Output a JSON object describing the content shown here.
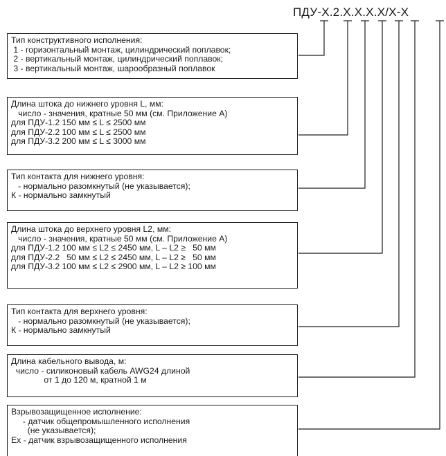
{
  "code": {
    "parts": [
      "ПДУ-",
      "Х",
      ".",
      "2",
      ".",
      "Х",
      ".",
      "Х",
      ".",
      "Х",
      ".",
      "Х",
      "/",
      "Х",
      "-",
      "Х"
    ]
  },
  "boxes": [
    {
      "lines": [
        "Тип конструктивного исполнения:",
        " 1 - горизонтальный монтаж, цилиндрический поплавок;",
        " 2 - вертикальный монтаж, цилиндрический поплавок;",
        " 3 - вертикальный монтаж, шарообразный поплавок"
      ]
    },
    {
      "lines": [
        "Длина штока до нижнего уровня L, мм:",
        "   число - значения, кратные 50 мм (см. Приложение А)",
        "для ПДУ-1.2 150 мм ≤ L ≤ 2500 мм",
        "для ПДУ-2.2 100 мм ≤ L ≤ 2500 мм",
        "для ПДУ-3.2 200 мм ≤ L ≤ 3000 мм"
      ]
    },
    {
      "lines": [
        "Тип контакта для нижнего уровня:",
        "   - нормально разомкнутый (не указывается);",
        "К - нормально замкнутый"
      ]
    },
    {
      "lines": [
        "Длина штока до верхнего уровня L2, мм:",
        "   число - значения, кратные 50 мм (см. Приложение А)",
        "для ПДУ-1.2 100 мм ≤ L2 ≤ 2450 мм, L – L2 ≥   50 мм",
        "для ПДУ-2.2   50 мм ≤ L2 ≤ 2450 мм, L – L2 ≥   50 мм",
        "для ПДУ-3.2 100 мм ≤ L2 ≤ 2900 мм, L – L2 ≥ 100 мм"
      ]
    },
    {
      "lines": [
        "Тип контакта для верхнего уровня:",
        "   - нормально разомкнутый (не указывается);",
        "К - нормально замкнутый"
      ]
    },
    {
      "lines": [
        "Длина кабельного вывода, м:",
        "  число - силиконовый кабель AWG24 длиной",
        "              от 1 до 120 м, кратной 1 м"
      ]
    },
    {
      "lines": [
        "Взрывозащищенное исполнение:",
        "     - датчик общепромышленного исполнения",
        "       (не указывается);",
        "Ех - датчик взрывозащищенного исполнения"
      ]
    }
  ]
}
